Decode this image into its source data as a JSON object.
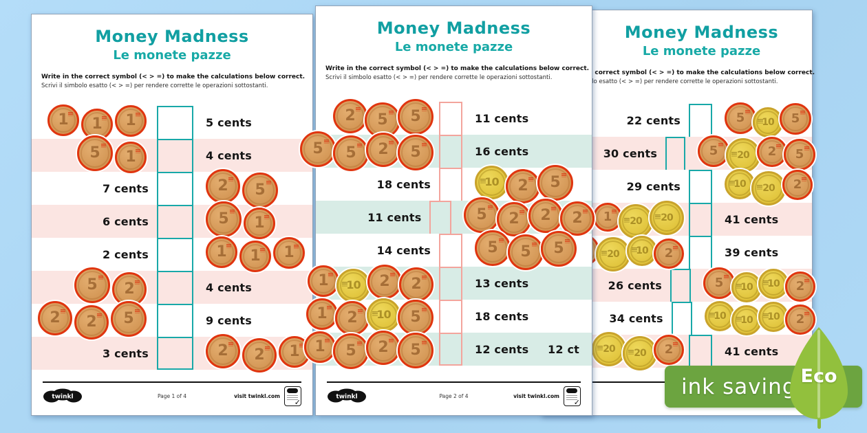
{
  "colors": {
    "background": "#A9D4F1",
    "title_teal": "#119FA2",
    "row_pink": "#FBE5E2",
    "row_mint": "#D8ECE6",
    "box_teal": "#18A8A8",
    "box_salmon": "#F3A49C",
    "coin_copper_fill": "#D89B58",
    "coin_copper_ring": "#E0350F",
    "coin_gold_fill": "#E3C83E",
    "coin_gold_ring": "#C9A32B",
    "eco_band_green": "#6CA440",
    "eco_leaf_green": "#92C03D"
  },
  "eco": {
    "ink_label": "ink saving",
    "eco_label": "Eco"
  },
  "pages": [
    {
      "title": "Money Madness",
      "subtitle": "Le monete pazze",
      "instruction_en": "Write in the correct symbol (< > =) to make the calculations below correct.",
      "instruction_it": "Scrivi il simbolo esatto (< > =) per rendere corrette le operazioni sottostanti.",
      "footer": {
        "logo": "twinkl",
        "page_label": "Page 1 of 4",
        "site_label": "visit twinkl.com"
      },
      "rows": [
        {
          "left": {
            "coins": [
              "1",
              "1",
              "1"
            ]
          },
          "right": {
            "text": "5 cents"
          }
        },
        {
          "left": {
            "coins": [
              "5",
              "1"
            ]
          },
          "right": {
            "text": "4 cents"
          }
        },
        {
          "left": {
            "text": "7 cents"
          },
          "right": {
            "coins": [
              "2",
              "5"
            ]
          }
        },
        {
          "left": {
            "text": "6 cents"
          },
          "right": {
            "coins": [
              "5",
              "1"
            ]
          }
        },
        {
          "left": {
            "text": "2 cents"
          },
          "right": {
            "coins": [
              "1",
              "1",
              "1"
            ]
          }
        },
        {
          "left": {
            "coins": [
              "5",
              "2"
            ]
          },
          "right": {
            "text": "4 cents"
          }
        },
        {
          "left": {
            "coins": [
              "2",
              "2",
              "5"
            ]
          },
          "right": {
            "text": "9 cents"
          }
        },
        {
          "left": {
            "text": "3 cents"
          },
          "right": {
            "coins": [
              "2",
              "2",
              "1"
            ]
          }
        }
      ]
    },
    {
      "title": "Money Madness",
      "subtitle": "Le monete pazze",
      "instruction_en": "Write in the correct symbol (< > =) to make the calculations below correct.",
      "instruction_it": "Scrivi il simbolo esatto (< > =) per rendere corrette le operazioni sottostanti.",
      "footer": {
        "logo": "twinkl",
        "page_label": "Page 2 of 4",
        "site_label": "visit twinkl.com"
      },
      "rows": [
        {
          "left": {
            "coins": [
              "2",
              "5",
              "5"
            ]
          },
          "right": {
            "text": "11 cents"
          }
        },
        {
          "left": {
            "coins": [
              "5",
              "5",
              "2",
              "5"
            ]
          },
          "right": {
            "text": "16 cents"
          }
        },
        {
          "left": {
            "text": "18 cents"
          },
          "right": {
            "coins": [
              "10",
              "2",
              "5"
            ]
          }
        },
        {
          "left": {
            "text": "11 cents"
          },
          "right": {
            "coins": [
              "5",
              "2",
              "2",
              "2"
            ]
          }
        },
        {
          "left": {
            "text": "14 cents"
          },
          "right": {
            "coins": [
              "5",
              "5",
              "5"
            ]
          }
        },
        {
          "left": {
            "coins": [
              "1",
              "10",
              "2",
              "2"
            ]
          },
          "right": {
            "text": "13 cents"
          }
        },
        {
          "left": {
            "coins": [
              "1",
              "2",
              "10",
              "5"
            ]
          },
          "right": {
            "text": "18 cents"
          }
        },
        {
          "left": {
            "coins": [
              "1",
              "5",
              "2",
              "5"
            ]
          },
          "right": {
            "text": "12 cents",
            "extra_label": "12 ct"
          }
        }
      ]
    },
    {
      "title": "Money Madness",
      "subtitle": "Le monete pazze",
      "instruction_en": "Write in the correct symbol (< > =) to make the calculations below correct.",
      "instruction_it": "Scrivi il simbolo esatto (< > =) per rendere corrette le operazioni sottostanti.",
      "footer": {
        "page_label": "",
        "site_label": ""
      },
      "rows": [
        {
          "left": {
            "text": "22 cents"
          },
          "right": {
            "coins": [
              "5",
              "10",
              "5"
            ]
          }
        },
        {
          "left": {
            "text": "30 cents"
          },
          "right": {
            "coins": [
              "5",
              "20",
              "2",
              "5"
            ]
          }
        },
        {
          "left": {
            "text": "29 cents"
          },
          "right": {
            "coins": [
              "10",
              "20",
              "2"
            ]
          }
        },
        {
          "left": {
            "coins": [
              "1",
              "20",
              "20"
            ]
          },
          "right": {
            "text": "41 cents"
          }
        },
        {
          "left": {
            "coins": [
              "",
              "20",
              "10",
              "2"
            ]
          },
          "right": {
            "text": "39 cents"
          }
        },
        {
          "left": {
            "text": "26 cents"
          },
          "right": {
            "coins": [
              "5",
              "10",
              "10",
              "2"
            ]
          }
        },
        {
          "left": {
            "text": "34 cents"
          },
          "right": {
            "coins": [
              "10",
              "10",
              "10",
              "2"
            ]
          }
        },
        {
          "left": {
            "coins": [
              "20",
              "20",
              "2"
            ]
          },
          "right": {
            "text": "41 cents"
          }
        }
      ]
    }
  ]
}
